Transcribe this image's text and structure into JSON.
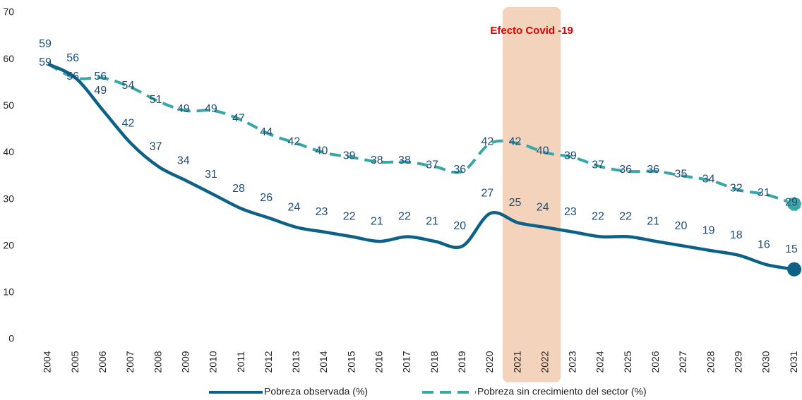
{
  "chart_data": {
    "type": "line",
    "categories": [
      "2004",
      "2005",
      "2006",
      "2007",
      "2008",
      "2009",
      "2010",
      "2011",
      "2012",
      "2013",
      "2014",
      "2015",
      "2016",
      "2017",
      "2018",
      "2019",
      "2020",
      "2021",
      "2022",
      "2023",
      "2024",
      "2025",
      "2026",
      "2027",
      "2028",
      "2029",
      "2030",
      "2031"
    ],
    "series": [
      {
        "name": "Pobreza observada (%)",
        "color": "#0d6186",
        "dash": false,
        "values": [
          59,
          56,
          49,
          42,
          37,
          34,
          31,
          28,
          26,
          24,
          23,
          22,
          21,
          22,
          21,
          20,
          27,
          25,
          24,
          23,
          22,
          22,
          21,
          20,
          19,
          18,
          16,
          15
        ]
      },
      {
        "name": "Pobreza sin crecimiento del sector (%)",
        "color": "#3aa6a6",
        "dash": true,
        "values": [
          59,
          56,
          56,
          54,
          51,
          49,
          49,
          47,
          44,
          42,
          40,
          39,
          38,
          38,
          37,
          36,
          42,
          42,
          40,
          39,
          37,
          36,
          36,
          35,
          34,
          32,
          31,
          29
        ]
      }
    ],
    "ylim": [
      0,
      70
    ],
    "yticks": [
      0,
      10,
      20,
      30,
      40,
      50,
      60,
      70
    ],
    "grid": false,
    "annotation": "Efecto Covid -19",
    "highlight": [
      "2021",
      "2022"
    ],
    "legend": "bottom"
  }
}
